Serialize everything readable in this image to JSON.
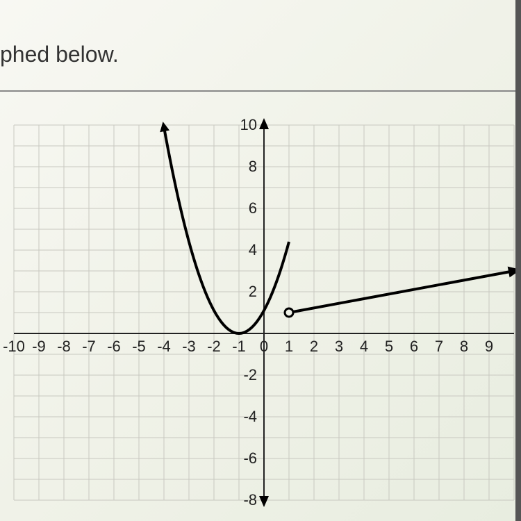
{
  "header": {
    "text_fragment": "phed below."
  },
  "chart": {
    "type": "line",
    "xlim": [
      -10,
      10
    ],
    "ylim": [
      -8,
      10
    ],
    "xtick_step": 1,
    "ytick_step": 2,
    "x_ticks": [
      -10,
      -9,
      -8,
      -7,
      -6,
      -5,
      -4,
      -3,
      -2,
      -1,
      0,
      1,
      2,
      3,
      4,
      5,
      6,
      7,
      8,
      9
    ],
    "y_ticks": [
      10,
      8,
      6,
      4,
      2,
      -2,
      -4,
      -6,
      -8
    ],
    "grid_color": "#c8c8c0",
    "axis_color": "#222222",
    "curve_color": "#000000",
    "background_color": "#f0f2e8",
    "tick_fontsize": 22,
    "curve_width": 4,
    "parabola": {
      "vertex": [
        -1,
        0
      ],
      "a": 1.1,
      "x_start": -4,
      "x_end": 1,
      "closed_end": true
    },
    "ray": {
      "start": [
        1,
        1
      ],
      "end": [
        10,
        3
      ],
      "open_start": true,
      "arrow_end": true
    },
    "open_circle_point": [
      1,
      1
    ],
    "open_circle_radius": 6
  }
}
